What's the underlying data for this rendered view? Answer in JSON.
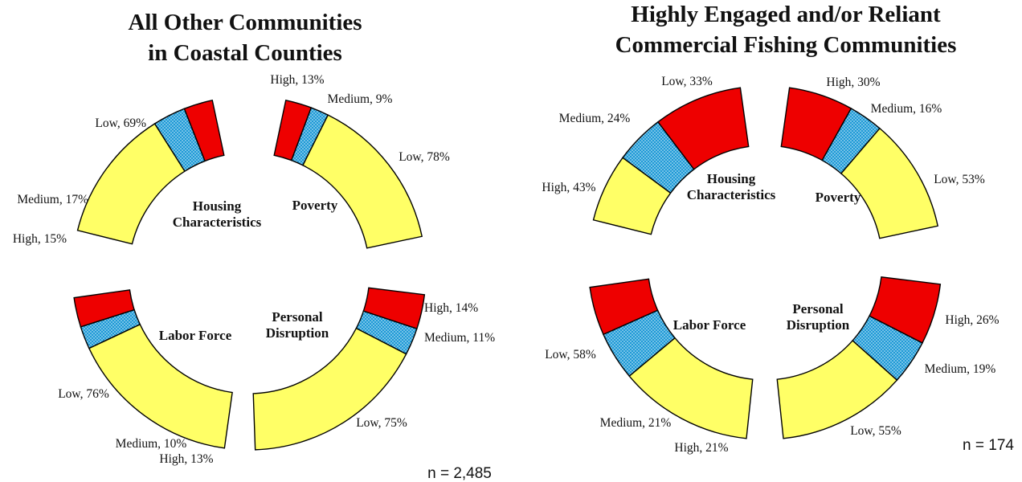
{
  "colors": {
    "High": "#ee0000",
    "Medium": "#1f9ad6",
    "Low": "#ffff66",
    "outline": "#000000"
  },
  "chart_data": [
    {
      "type": "donut",
      "title": [
        "All Other Communities",
        "in Coastal Counties"
      ],
      "n_label": "n = 2,485",
      "categories": [
        {
          "name": [
            "Housing",
            "Characteristics"
          ],
          "segments": [
            {
              "label": "High, 15%",
              "level": "High",
              "value": 15
            },
            {
              "label": "Medium, 17%",
              "level": "Medium",
              "value": 17
            },
            {
              "label": "Low, 69%",
              "level": "Low",
              "value": 69
            }
          ]
        },
        {
          "name": [
            "Poverty"
          ],
          "segments": [
            {
              "label": "High, 13%",
              "level": "High",
              "value": 13
            },
            {
              "label": "Medium, 9%",
              "level": "Medium",
              "value": 9
            },
            {
              "label": "Low, 78%",
              "level": "Low",
              "value": 78
            }
          ]
        },
        {
          "name": [
            "Personal",
            "Disruption"
          ],
          "segments": [
            {
              "label": "High, 14%",
              "level": "High",
              "value": 14
            },
            {
              "label": "Medium, 11%",
              "level": "Medium",
              "value": 11
            },
            {
              "label": "Low, 75%",
              "level": "Low",
              "value": 75
            }
          ]
        },
        {
          "name": [
            "Labor Force"
          ],
          "segments": [
            {
              "label": "High, 13%",
              "level": "High",
              "value": 13
            },
            {
              "label": "Medium, 10%",
              "level": "Medium",
              "value": 10
            },
            {
              "label": "Low, 76%",
              "level": "Low",
              "value": 76
            }
          ]
        }
      ]
    },
    {
      "type": "donut",
      "title": [
        "Highly Engaged and/or Reliant",
        "Commercial Fishing Communities"
      ],
      "n_label": "n = 174",
      "categories": [
        {
          "name": [
            "Housing",
            "Characteristics"
          ],
          "segments": [
            {
              "label": "High, 43%",
              "level": "High",
              "value": 43
            },
            {
              "label": "Medium, 24%",
              "level": "Medium",
              "value": 24
            },
            {
              "label": "Low, 33%",
              "level": "Low",
              "value": 33
            }
          ]
        },
        {
          "name": [
            "Poverty"
          ],
          "segments": [
            {
              "label": "High, 30%",
              "level": "High",
              "value": 30
            },
            {
              "label": "Medium, 16%",
              "level": "Medium",
              "value": 16
            },
            {
              "label": "Low, 53%",
              "level": "Low",
              "value": 53
            }
          ]
        },
        {
          "name": [
            "Personal",
            "Disruption"
          ],
          "segments": [
            {
              "label": "High, 26%",
              "level": "High",
              "value": 26
            },
            {
              "label": "Medium, 19%",
              "level": "Medium",
              "value": 19
            },
            {
              "label": "Low, 55%",
              "level": "Low",
              "value": 55
            }
          ]
        },
        {
          "name": [
            "Labor Force"
          ],
          "segments": [
            {
              "label": "High, 21%",
              "level": "High",
              "value": 21
            },
            {
              "label": "Medium, 21%",
              "level": "Medium",
              "value": 21
            },
            {
              "label": "Low, 58%",
              "level": "Low",
              "value": 58
            }
          ]
        }
      ]
    }
  ]
}
